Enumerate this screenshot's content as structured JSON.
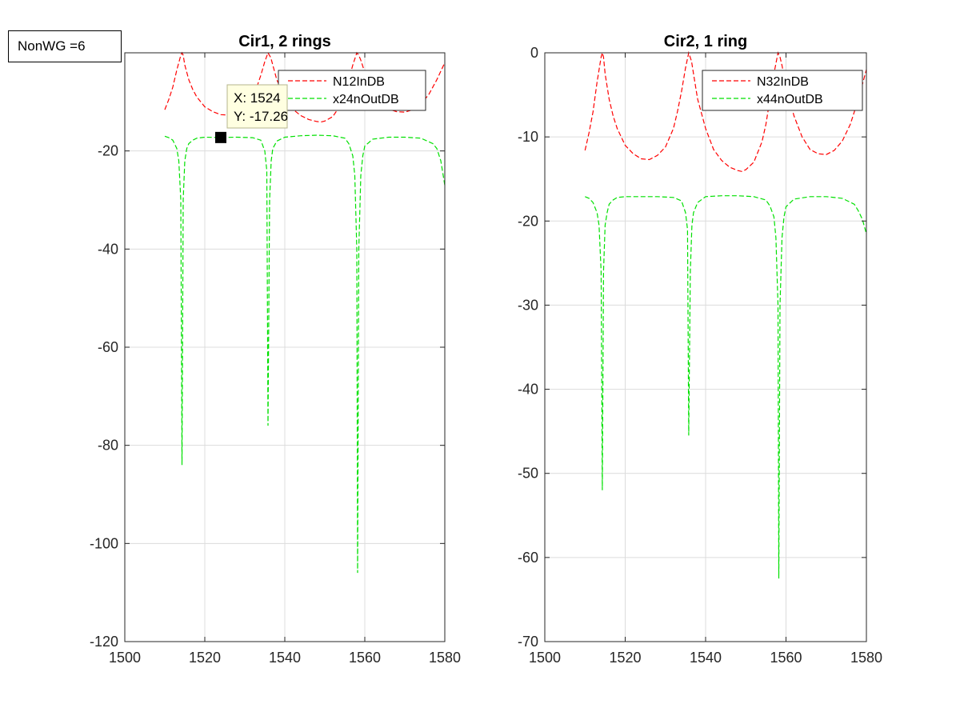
{
  "annotation": {
    "label": "NonWG =6"
  },
  "chart_data": [
    {
      "type": "line",
      "title": "Cir1, 2 rings",
      "xlabel": "",
      "ylabel": "",
      "xlim": [
        1500,
        1580
      ],
      "ylim": [
        -120,
        0
      ],
      "xticks": [
        1500,
        1520,
        1540,
        1560,
        1580
      ],
      "yticks": [
        -120,
        -100,
        -80,
        -60,
        -40,
        -20,
        0
      ],
      "grid": true,
      "legend_position": "top-right",
      "series": [
        {
          "name": "N12InDB",
          "color": "#ff0000",
          "style": "dashed",
          "x": [
            1510,
            1511,
            1512,
            1513,
            1514,
            1514.3,
            1514.6,
            1515,
            1516,
            1517,
            1518,
            1520,
            1522,
            1524,
            1526,
            1528,
            1530,
            1532,
            1533,
            1534,
            1535,
            1535.8,
            1536.5,
            1537,
            1538,
            1540,
            1542,
            1544,
            1546,
            1548,
            1549,
            1550,
            1552,
            1554,
            1555,
            1556,
            1557,
            1558,
            1558.5,
            1559,
            1560,
            1562,
            1564,
            1566,
            1568,
            1570,
            1572,
            1574,
            1576,
            1578,
            1580
          ],
          "y": [
            -11.6,
            -9.5,
            -7,
            -3.5,
            -0.5,
            0,
            -0.5,
            -2.5,
            -5.5,
            -7.5,
            -9,
            -11,
            -12,
            -12.6,
            -12.7,
            -12.2,
            -11.2,
            -9,
            -7,
            -4.6,
            -1.8,
            0,
            -1,
            -2.5,
            -5.5,
            -9,
            -11.5,
            -12.8,
            -13.6,
            -14,
            -14.1,
            -13.9,
            -13,
            -10.6,
            -8.5,
            -5.5,
            -2.5,
            0,
            -0.5,
            -1.5,
            -4,
            -7.5,
            -10,
            -11.5,
            -12,
            -12.1,
            -11.6,
            -10.5,
            -8.5,
            -5.5,
            -2
          ]
        },
        {
          "name": "x24nOutDB",
          "color": "#00e000",
          "style": "dashed",
          "x": [
            1510,
            1511,
            1512,
            1513,
            1513.5,
            1514,
            1514.3,
            1514.6,
            1515,
            1515.5,
            1516,
            1517,
            1518,
            1520,
            1524,
            1528,
            1532,
            1534,
            1535,
            1535.5,
            1535.8,
            1536.2,
            1536.6,
            1537,
            1538,
            1540,
            1544,
            1548,
            1552,
            1555,
            1556,
            1557,
            1557.5,
            1558,
            1558.2,
            1558.5,
            1559,
            1559.5,
            1560,
            1562,
            1566,
            1570,
            1574,
            1577,
            1578,
            1579,
            1580
          ],
          "y": [
            -17,
            -17.3,
            -17.8,
            -19.5,
            -22,
            -30,
            -84,
            -30,
            -22,
            -19.5,
            -18.5,
            -17.8,
            -17.4,
            -17.2,
            -17.26,
            -17.2,
            -17.3,
            -17.8,
            -20,
            -24,
            -76,
            -30,
            -22,
            -19.5,
            -18,
            -17.2,
            -16.9,
            -16.8,
            -16.9,
            -17.4,
            -18.5,
            -21,
            -25,
            -40,
            -106,
            -40,
            -25,
            -21,
            -19,
            -17.6,
            -17.2,
            -17.2,
            -17.4,
            -18.5,
            -19.5,
            -22,
            -27
          ]
        }
      ],
      "datatip": {
        "x_text": "X: 1524",
        "y_text": "Y: -17.26",
        "x": 1524,
        "y": -17.26
      }
    },
    {
      "type": "line",
      "title": "Cir2, 1 ring",
      "xlabel": "",
      "ylabel": "",
      "xlim": [
        1500,
        1580
      ],
      "ylim": [
        -70,
        0
      ],
      "xticks": [
        1500,
        1520,
        1540,
        1560,
        1580
      ],
      "yticks": [
        -70,
        -60,
        -50,
        -40,
        -30,
        -20,
        -10,
        0
      ],
      "grid": true,
      "legend_position": "top-right",
      "series": [
        {
          "name": "N32InDB",
          "color": "#ff0000",
          "style": "dashed",
          "x": [
            1510,
            1511,
            1512,
            1513,
            1514,
            1514.3,
            1514.6,
            1515,
            1516,
            1517,
            1518,
            1520,
            1522,
            1524,
            1526,
            1528,
            1530,
            1532,
            1533,
            1534,
            1535,
            1535.8,
            1536.5,
            1537,
            1538,
            1540,
            1542,
            1544,
            1546,
            1548,
            1549,
            1550,
            1552,
            1554,
            1555,
            1556,
            1557,
            1558,
            1558.5,
            1559,
            1560,
            1562,
            1564,
            1566,
            1568,
            1570,
            1572,
            1574,
            1576,
            1578,
            1580
          ],
          "y": [
            -11.6,
            -9.5,
            -7,
            -3.5,
            -0.5,
            0,
            -0.5,
            -2.5,
            -5.5,
            -7.5,
            -9,
            -11,
            -12,
            -12.6,
            -12.7,
            -12.2,
            -11.2,
            -9,
            -7,
            -4.6,
            -1.8,
            0,
            -1,
            -2.5,
            -5.5,
            -9,
            -11.5,
            -12.8,
            -13.6,
            -14,
            -14.1,
            -13.9,
            -13,
            -10.6,
            -8.5,
            -5.5,
            -2.5,
            0,
            -0.5,
            -1.5,
            -4,
            -7.5,
            -10,
            -11.5,
            -12,
            -12.1,
            -11.6,
            -10.5,
            -8.5,
            -5.5,
            -2
          ]
        },
        {
          "name": "x44nOutDB",
          "color": "#00e000",
          "style": "dashed",
          "x": [
            1510,
            1511,
            1512,
            1513,
            1513.5,
            1514,
            1514.3,
            1514.6,
            1515,
            1515.5,
            1516,
            1517,
            1518,
            1520,
            1524,
            1528,
            1532,
            1534,
            1535,
            1535.5,
            1535.8,
            1536.2,
            1536.6,
            1537,
            1538,
            1540,
            1544,
            1548,
            1552,
            1555,
            1556,
            1557,
            1557.5,
            1558,
            1558.2,
            1558.5,
            1559,
            1559.5,
            1560,
            1562,
            1566,
            1570,
            1574,
            1577,
            1578,
            1579,
            1580
          ],
          "y": [
            -17.1,
            -17.3,
            -17.8,
            -19,
            -20.5,
            -26,
            -52,
            -26,
            -20.5,
            -19,
            -18,
            -17.5,
            -17.2,
            -17.1,
            -17.1,
            -17.1,
            -17.2,
            -17.6,
            -19,
            -21,
            -45.5,
            -26,
            -20.5,
            -19,
            -17.8,
            -17.1,
            -17,
            -17,
            -17.1,
            -17.5,
            -18.2,
            -19.5,
            -22,
            -30,
            -62.5,
            -30,
            -22,
            -19.5,
            -18.3,
            -17.4,
            -17.1,
            -17.1,
            -17.3,
            -18,
            -18.8,
            -19.8,
            -21.5
          ]
        }
      ]
    }
  ]
}
